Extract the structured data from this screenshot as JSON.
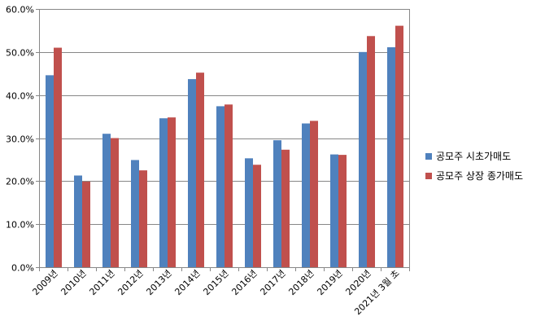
{
  "chart_data": {
    "type": "bar",
    "title": "",
    "xlabel": "",
    "ylabel": "",
    "categories": [
      "2009년",
      "2010년",
      "2011년",
      "2012년",
      "2013년",
      "2014년",
      "2015년",
      "2016년",
      "2017년",
      "2018년",
      "2019년",
      "2020년",
      "2021년 3월 초"
    ],
    "series": [
      {
        "name": "공모주 시초가매도",
        "color": "#4F81BD",
        "values": [
          44.6,
          21.3,
          31.0,
          24.9,
          34.6,
          43.7,
          37.4,
          25.3,
          29.5,
          33.4,
          26.2,
          50.0,
          51.1
        ]
      },
      {
        "name": "공모주 상장 종가매도",
        "color": "#C0504D",
        "values": [
          51.0,
          19.9,
          30.0,
          22.5,
          34.8,
          45.2,
          37.8,
          23.8,
          27.3,
          34.0,
          26.1,
          53.7,
          56.1
        ]
      }
    ],
    "ylim": [
      0,
      60
    ],
    "yticks": [
      "0.0%",
      "10.0%",
      "20.0%",
      "30.0%",
      "40.0%",
      "50.0%",
      "60.0%"
    ],
    "grid": true,
    "legend_position": "right"
  }
}
